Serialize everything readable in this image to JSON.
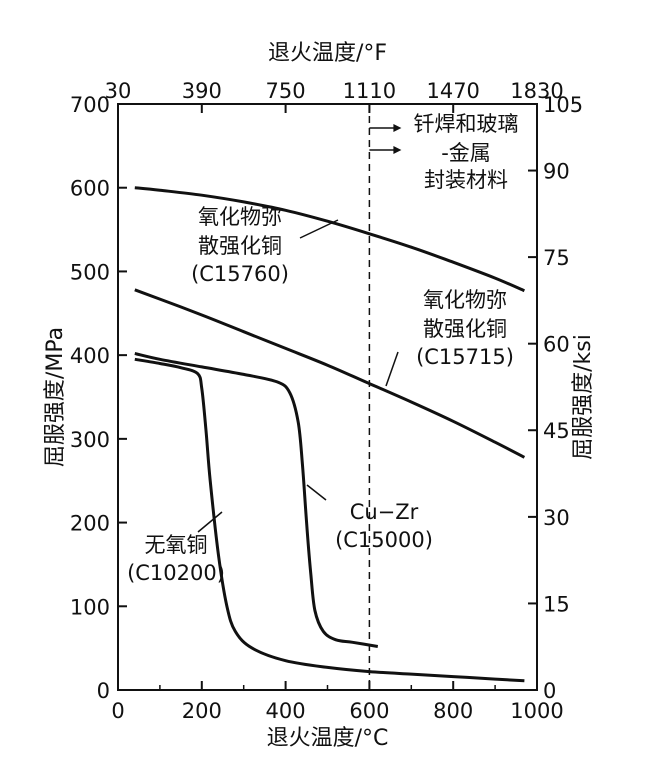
{
  "chart_data": {
    "type": "line",
    "xlabel": "退火温度/°C",
    "xlabel_top": "退火温度/°F",
    "ylabel": "屈服强度/MPa",
    "ylabel_right": "屈服强度/ksi",
    "xlim": [
      0,
      1000
    ],
    "ylim": [
      0,
      700
    ],
    "x_ticks": [
      "0",
      "200",
      "400",
      "600",
      "800",
      "1000"
    ],
    "y_ticks": [
      "0",
      "100",
      "200",
      "300",
      "400",
      "500",
      "600",
      "700"
    ],
    "top_ticks": [
      {
        "label": "30",
        "x": 0
      },
      {
        "label": "390",
        "x": 200
      },
      {
        "label": "750",
        "x": 400
      },
      {
        "label": "1110",
        "x": 600
      },
      {
        "label": "1470",
        "x": 800
      },
      {
        "label": "1830",
        "x": 1000
      }
    ],
    "right_ticks": [
      {
        "label": "0",
        "y": 0
      },
      {
        "label": "15",
        "y": 103.4
      },
      {
        "label": "30",
        "y": 206.8
      },
      {
        "label": "45",
        "y": 310.3
      },
      {
        "label": "60",
        "y": 413.7
      },
      {
        "label": "75",
        "y": 517.1
      },
      {
        "label": "90",
        "y": 620.5
      },
      {
        "label": "105",
        "y": 724
      }
    ],
    "grid": false,
    "vline": {
      "x": 600,
      "style": "dashed"
    },
    "annotation": {
      "lines": [
        "钎焊和玻璃",
        "-金属",
        "封装材料"
      ],
      "x": 600
    },
    "series": [
      {
        "labels": [
          "氧化物弥",
          "散强化铜",
          "(C15760)"
        ],
        "x": [
          40,
          100,
          200,
          300,
          400,
          500,
          600,
          700,
          800,
          900,
          970
        ],
        "y": [
          600,
          597,
          591,
          583,
          573,
          560,
          545,
          529,
          511,
          492,
          477
        ]
      },
      {
        "labels": [
          "氧化物弥",
          "散强化铜",
          "(C15715)"
        ],
        "x": [
          40,
          100,
          200,
          300,
          400,
          500,
          600,
          700,
          800,
          900,
          970
        ],
        "y": [
          478,
          467,
          448,
          428,
          408,
          388,
          366,
          344,
          321,
          296,
          278
        ]
      },
      {
        "labels": [
          "Cu−Zr",
          "(C15000)"
        ],
        "x": [
          40,
          100,
          200,
          300,
          380,
          410,
          430,
          440,
          450,
          460,
          470,
          490,
          520,
          560,
          620
        ],
        "y": [
          402,
          395,
          386,
          377,
          368,
          355,
          320,
          270,
          200,
          140,
          95,
          70,
          60,
          57,
          52
        ]
      },
      {
        "labels": [
          "无氧铜",
          "(C10200)"
        ],
        "x": [
          40,
          100,
          150,
          190,
          200,
          210,
          220,
          240,
          260,
          280,
          320,
          400,
          500,
          600,
          700,
          800,
          900,
          970
        ],
        "y": [
          395,
          390,
          385,
          378,
          360,
          310,
          250,
          160,
          100,
          70,
          50,
          35,
          27,
          22,
          19,
          16,
          13,
          11
        ]
      }
    ]
  }
}
